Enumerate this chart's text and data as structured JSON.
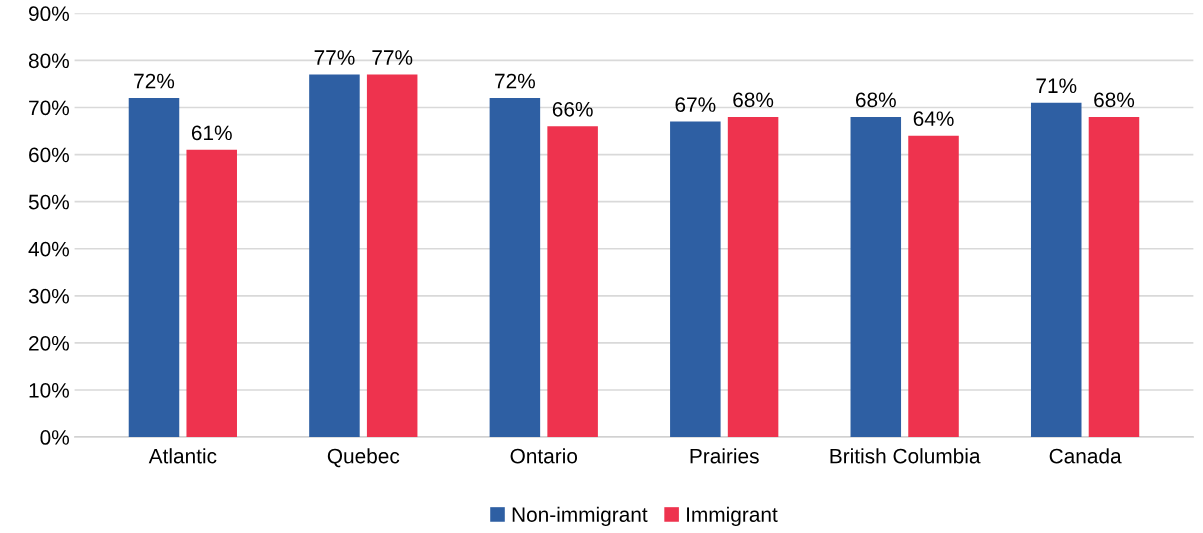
{
  "chart_data": {
    "type": "bar",
    "categories": [
      "Atlantic",
      "Quebec",
      "Ontario",
      "Prairies",
      "British Columbia",
      "Canada"
    ],
    "series": [
      {
        "name": "Non-immigrant",
        "color": "#2e5fa3",
        "values": [
          72,
          77,
          72,
          67,
          68,
          71
        ],
        "value_labels": [
          "72%",
          "77%",
          "72%",
          "67%",
          "68%",
          "71%"
        ]
      },
      {
        "name": "Immigrant",
        "color": "#ee334e",
        "values": [
          61,
          77,
          66,
          68,
          64,
          68
        ],
        "value_labels": [
          "61%",
          "77%",
          "66%",
          "68%",
          "64%",
          "68%"
        ]
      }
    ],
    "ylim": [
      0,
      90
    ],
    "yticks": [
      {
        "value": 0,
        "label": "0%"
      },
      {
        "value": 10,
        "label": "10%"
      },
      {
        "value": 20,
        "label": "20%"
      },
      {
        "value": 30,
        "label": "30%"
      },
      {
        "value": 40,
        "label": "40%"
      },
      {
        "value": 50,
        "label": "50%"
      },
      {
        "value": 60,
        "label": "60%"
      },
      {
        "value": 70,
        "label": "70%"
      },
      {
        "value": 80,
        "label": "80%"
      },
      {
        "value": 90,
        "label": "90%"
      }
    ],
    "grid": "y",
    "legend": "bottom"
  }
}
